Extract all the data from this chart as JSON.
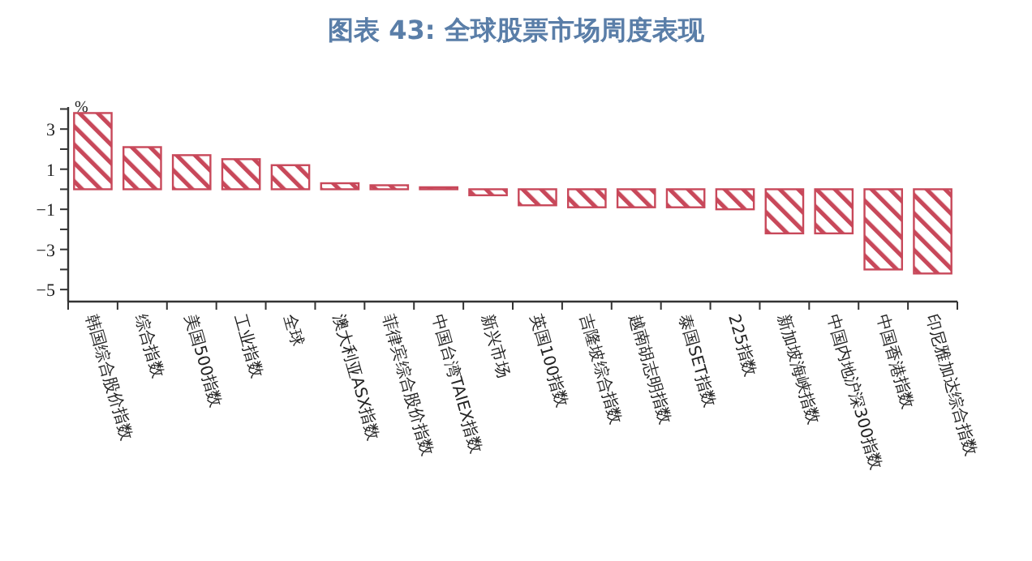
{
  "chart_data": {
    "type": "bar",
    "title": "图表 43: 全球股票市场周度表现",
    "ylabel": "%",
    "categories": [
      "韩国综合股价指数",
      "综合指数",
      "美国500指数",
      "工业指数",
      "全球",
      "澳大利亚ASX指数",
      "菲律宾综合股价指数",
      "中国台湾TAIEX指数",
      "新兴市场",
      "英国100指数",
      "吉隆坡综合指数",
      "越南胡志明指数",
      "泰国SET指数",
      "225指数",
      "新加坡海峡指数",
      "中国内地沪深300指数",
      "中国香港指数",
      "印尼雅加达综合指数"
    ],
    "values": [
      3.8,
      2.1,
      1.7,
      1.5,
      1.2,
      0.3,
      0.2,
      0.1,
      -0.3,
      -0.8,
      -0.9,
      -0.9,
      -0.9,
      -1.0,
      -2.2,
      -2.2,
      -4.0,
      -4.2
    ],
    "color": "#c8485a",
    "ylim": [
      -5.6,
      4.1
    ],
    "yticks": [
      -5,
      {
        "value": -4,
        "label": null
      },
      -3,
      {
        "value": -2,
        "label": null
      },
      -1,
      {
        "value": 0,
        "label": null
      },
      1,
      {
        "value": 2,
        "label": null
      },
      3,
      {
        "value": 4,
        "label": null
      }
    ],
    "grid": false
  }
}
